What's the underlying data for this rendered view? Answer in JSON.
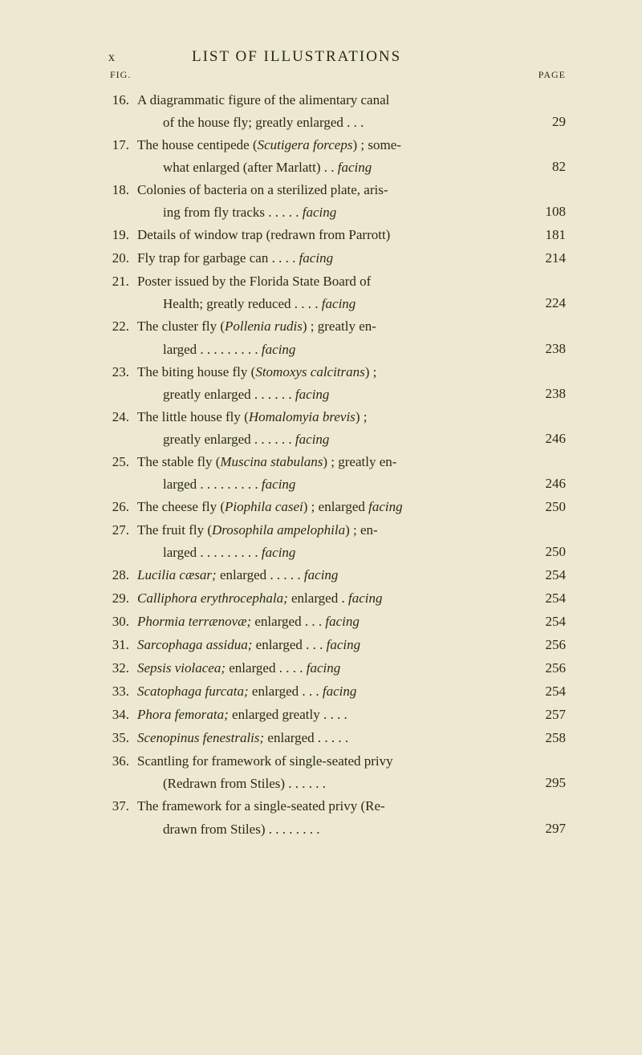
{
  "colors": {
    "background": "#ede8d2",
    "text": "#2a2818"
  },
  "typography": {
    "body_family": "Times New Roman, Georgia, serif",
    "body_size": 17,
    "header_size": 19,
    "small_size": 12
  },
  "header": {
    "page_roman": "x",
    "title": "LIST OF ILLUSTRATIONS",
    "fig_label": "FIG.",
    "page_label": "PAGE"
  },
  "entries": [
    {
      "num": "16.",
      "line1": "A diagrammatic figure of the alimentary canal",
      "line2": "of the house fly; greatly enlarged . . .",
      "italic": "",
      "page": "29"
    },
    {
      "num": "17.",
      "line1": "The house centipede (",
      "italic1": "Scutigera forceps",
      "line1b": ") ; some-",
      "line2": "what enlarged (after Marlatt) . . ",
      "italic2": "facing",
      "page": "82"
    },
    {
      "num": "18.",
      "line1": "Colonies of bacteria on a sterilized plate, aris-",
      "line2": "ing from fly tracks . . . . . ",
      "italic2": "facing",
      "page": "108"
    },
    {
      "num": "19.",
      "line1": "Details of window trap (redrawn from Parrott)",
      "page": "181"
    },
    {
      "num": "20.",
      "line1": "Fly trap for garbage can . . . . ",
      "italic1b": "facing",
      "page": "214"
    },
    {
      "num": "21.",
      "line1": "Poster issued by the Florida State Board of",
      "line2": "Health; greatly reduced . . . . ",
      "italic2": "facing",
      "page": "224"
    },
    {
      "num": "22.",
      "line1": "The cluster fly (",
      "italic1": "Pollenia rudis",
      "line1b": ") ; greatly en-",
      "line2": "larged . . . . . . . . . ",
      "italic2": "facing",
      "page": "238"
    },
    {
      "num": "23.",
      "line1": "The biting house fly (",
      "italic1": "Stomoxys calcitrans",
      "line1b": ") ;",
      "line2": "greatly enlarged . . . . . . ",
      "italic2": "facing",
      "page": "238"
    },
    {
      "num": "24.",
      "line1": "The little house fly (",
      "italic1": "Homalomyia brevis",
      "line1b": ") ;",
      "line2": "greatly enlarged . . . . . . ",
      "italic2": "facing",
      "page": "246"
    },
    {
      "num": "25.",
      "line1": "The stable fly (",
      "italic1": "Muscina stabulans",
      "line1b": ") ; greatly en-",
      "line2": "larged . . . . . . . . . ",
      "italic2": "facing",
      "page": "246"
    },
    {
      "num": "26.",
      "line1": "The cheese fly (",
      "italic1": "Piophila casei",
      "line1b": ") ; enlarged ",
      "italic1c": "facing",
      "page": "250"
    },
    {
      "num": "27.",
      "line1": "The fruit fly (",
      "italic1": "Drosophila ampelophila",
      "line1b": ") ; en-",
      "line2": "larged . . . . . . . . . ",
      "italic2": "facing",
      "page": "250"
    },
    {
      "num": "28.",
      "line1_i": "Lucilia cæsar;",
      "line1": " enlarged . . . . . ",
      "italic1b": "facing",
      "page": "254"
    },
    {
      "num": "29.",
      "line1_i": "Calliphora erythrocephala;",
      "line1": " enlarged . ",
      "italic1b": "facing",
      "page": "254"
    },
    {
      "num": "30.",
      "line1_i": "Phormia terrænovæ;",
      "line1": " enlarged . . . ",
      "italic1b": "facing",
      "page": "254"
    },
    {
      "num": "31.",
      "line1_i": "Sarcophaga assidua;",
      "line1": " enlarged . . . ",
      "italic1b": "facing",
      "page": "256"
    },
    {
      "num": "32.",
      "line1_i": "Sepsis violacea;",
      "line1": " enlarged . . . . ",
      "italic1b": "facing",
      "page": "256"
    },
    {
      "num": "33.",
      "line1_i": "Scatophaga furcata;",
      "line1": " enlarged . . . ",
      "italic1b": "facing",
      "page": "254"
    },
    {
      "num": "34.",
      "line1_i": "Phora femorata;",
      "line1": " enlarged greatly . . . .",
      "page": "257"
    },
    {
      "num": "35.",
      "line1_i": "Scenopinus fenestralis;",
      "line1": " enlarged . . . . .",
      "page": "258"
    },
    {
      "num": "36.",
      "line1": "Scantling for framework of single-seated privy",
      "line2": "(Redrawn from Stiles) . . . . . .",
      "page": "295"
    },
    {
      "num": "37.",
      "line1": "The framework for a single-seated privy (Re-",
      "line2": "drawn from Stiles) . . . . . . . .",
      "page": "297"
    }
  ]
}
